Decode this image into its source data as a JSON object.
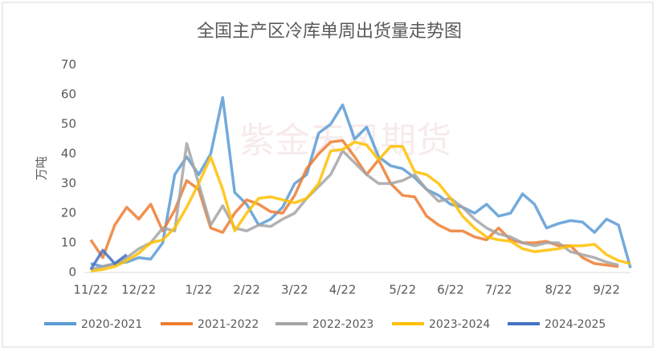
{
  "chart_data": {
    "type": "line",
    "title": "全国主产区冷库单周出货量走势图",
    "y_label": "万吨",
    "watermark": "紫金天风期货",
    "categories": [
      "11/22",
      null,
      null,
      null,
      "12/22",
      null,
      null,
      null,
      null,
      "1/22",
      null,
      null,
      null,
      "2/22",
      null,
      null,
      null,
      "3/22",
      null,
      null,
      null,
      "4/22",
      null,
      null,
      null,
      null,
      "5/22",
      null,
      null,
      null,
      "6/22",
      null,
      null,
      null,
      "7/22",
      null,
      null,
      null,
      null,
      "8/22",
      null,
      null,
      null,
      "9/22",
      null,
      null
    ],
    "series": [
      {
        "name": "2020-2021",
        "color": "#5b9bd5",
        "values": [
          3,
          2,
          3,
          3.5,
          5,
          4.5,
          10,
          33,
          39,
          33,
          40,
          59,
          27,
          23,
          16,
          18,
          22,
          30,
          33,
          47,
          50,
          56.5,
          45,
          49,
          39,
          36,
          35,
          32,
          28,
          26,
          23,
          22,
          20,
          23,
          19,
          20,
          26.5,
          23,
          15,
          16.5,
          17.5,
          17,
          13.5,
          18,
          16,
          1.5
        ]
      },
      {
        "name": "2021-2022",
        "color": "#ed7d31",
        "values": [
          11,
          5,
          16,
          22,
          18,
          23,
          14,
          21,
          31,
          28,
          15,
          13.5,
          20,
          24.5,
          23,
          20.5,
          20,
          26,
          35,
          40,
          44,
          44.5,
          39,
          33,
          38,
          30,
          26,
          25.5,
          19,
          16,
          14,
          14,
          12,
          11,
          15,
          11,
          10,
          10,
          10.5,
          9,
          9,
          5,
          3,
          2.5,
          2,
          null
        ]
      },
      {
        "name": "2022-2023",
        "color": "#a5a5a5",
        "values": [
          1,
          2,
          3,
          5,
          8,
          10,
          15,
          14,
          43.5,
          30,
          16,
          22.5,
          15,
          14,
          16,
          15.5,
          18,
          20,
          25,
          29,
          33,
          41,
          37,
          33,
          30,
          30,
          31,
          33,
          28,
          24,
          25,
          22,
          18,
          15,
          13,
          12,
          10,
          9,
          10,
          10,
          7,
          6,
          5,
          3.5,
          2.5,
          null
        ]
      },
      {
        "name": "2023-2024",
        "color": "#ffc000",
        "values": [
          0.5,
          1,
          2,
          4,
          6.5,
          10,
          11,
          15,
          22,
          30,
          39,
          28,
          14,
          20,
          25,
          25.5,
          24.5,
          23.5,
          25,
          30,
          41,
          41.5,
          44,
          43,
          38,
          42.5,
          42.5,
          34,
          33,
          30,
          25,
          19,
          15,
          12,
          11,
          10.5,
          8,
          7,
          7.5,
          8,
          9,
          9,
          9.5,
          6,
          4,
          3
        ]
      },
      {
        "name": "2024-2025",
        "color": "#4472c4",
        "values": [
          1,
          7.5,
          3,
          6,
          null,
          null,
          null,
          null,
          null,
          null,
          null,
          null,
          null,
          null,
          null,
          null,
          null,
          null,
          null,
          null,
          null,
          null,
          null,
          null,
          null,
          null,
          null,
          null,
          null,
          null,
          null,
          null,
          null,
          null,
          null,
          null,
          null,
          null,
          null,
          null,
          null,
          null,
          null,
          null,
          null,
          null
        ]
      }
    ],
    "ylim": [
      0,
      70
    ],
    "yticks": [
      0,
      10,
      20,
      30,
      40,
      50,
      60,
      70
    ],
    "grid": false
  }
}
